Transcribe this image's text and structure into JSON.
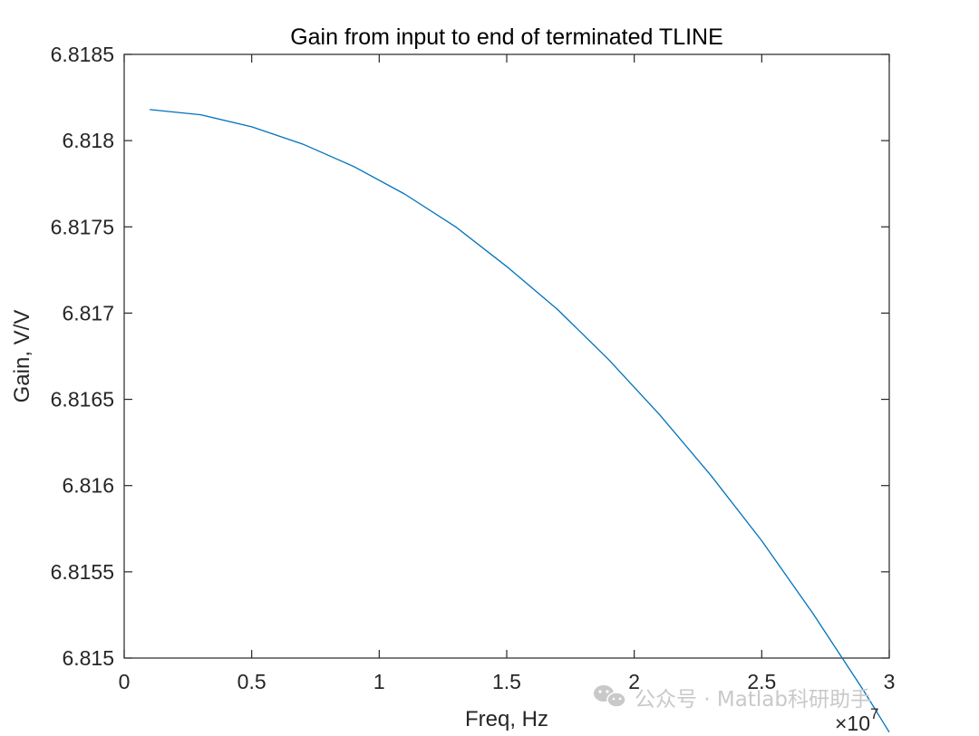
{
  "chart_data": {
    "type": "line",
    "title": "Gain from input to end of terminated TLINE",
    "xlabel": "Freq, Hz",
    "ylabel": "Gain, V/V",
    "x_exponent_label": "×10",
    "x_exponent_power": "7",
    "xlim": [
      0,
      3
    ],
    "ylim": [
      6.815,
      6.8185
    ],
    "xticks": [
      0,
      0.5,
      1,
      1.5,
      2,
      2.5,
      3
    ],
    "xtick_labels": [
      "0",
      "0.5",
      "1",
      "1.5",
      "2",
      "2.5",
      "3"
    ],
    "yticks": [
      6.815,
      6.8155,
      6.816,
      6.8165,
      6.817,
      6.8175,
      6.818,
      6.8185
    ],
    "ytick_labels": [
      "6.815",
      "6.8155",
      "6.816",
      "6.8165",
      "6.817",
      "6.8175",
      "6.818",
      "6.8185"
    ],
    "grid": false,
    "series": [
      {
        "color": "#0072BD",
        "x": [
          0.1,
          0.3,
          0.5,
          0.7,
          0.9,
          1.1,
          1.3,
          1.5,
          1.7,
          1.9,
          2.1,
          2.3,
          2.5,
          2.7,
          2.9,
          3.0
        ],
        "y": [
          6.81818,
          6.81815,
          6.81808,
          6.81798,
          6.81785,
          6.81769,
          6.8175,
          6.81727,
          6.81702,
          6.81673,
          6.81641,
          6.81606,
          6.81568,
          6.81526,
          6.81481,
          6.81457
        ]
      }
    ]
  },
  "watermark": {
    "text": "公众号 · Matlab科研助手",
    "icon": "wechat-icon"
  }
}
